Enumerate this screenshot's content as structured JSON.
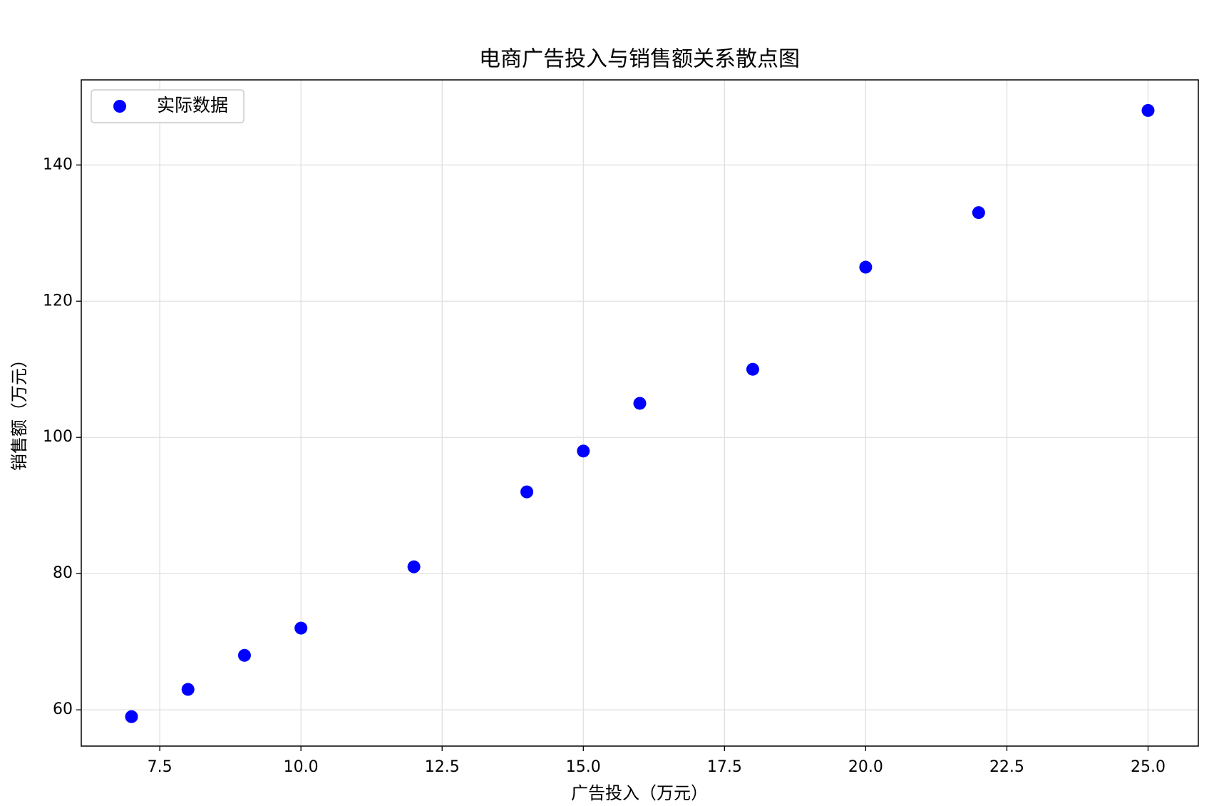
{
  "chart_data": {
    "type": "scatter",
    "title": "电商广告投入与销售额关系散点图",
    "x_label": "广告投入（万元）",
    "y_label": "销售额（万元）",
    "x": [
      7,
      8,
      9,
      10,
      12,
      14,
      15,
      16,
      18,
      20,
      22,
      25
    ],
    "series": [
      {
        "name": "实际数据",
        "color": "#0000ff",
        "values": [
          59,
          63,
          68,
          72,
          81,
          92,
          98,
          105,
          110,
          125,
          133,
          148
        ]
      }
    ],
    "xlim": [
      6.11,
      25.89
    ],
    "ylim": [
      54.68,
      152.49
    ],
    "xticks": [
      7.5,
      {
        "value": 10,
        "label": "10.0"
      },
      12.5,
      {
        "value": 15,
        "label": "15.0"
      },
      17.5,
      {
        "value": 20,
        "label": "20.0"
      },
      22.5,
      {
        "value": 25,
        "label": "25.0"
      }
    ],
    "yticks": [
      60,
      80,
      100,
      120,
      140
    ],
    "grid": true,
    "legend": "upper-left"
  }
}
